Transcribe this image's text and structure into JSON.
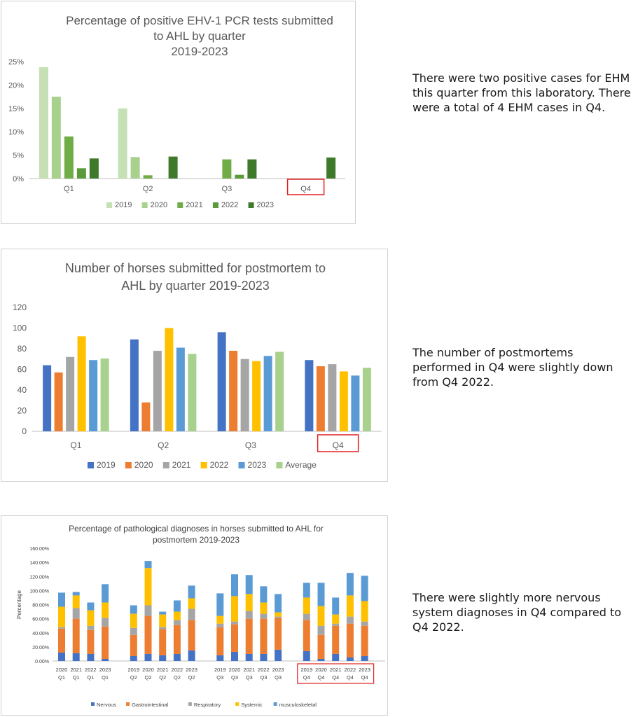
{
  "notes": {
    "ehm": "There were two positive cases for EHM this quarter from this laboratory. There were a total of 4 EHM cases in Q4.",
    "postmortem": "The number of postmortems performed in Q4 were slightly down from Q4 2022.",
    "diagnoses": "There were slightly more nervous system diagnoses in Q4 compared to Q4 2022."
  },
  "chart_data": [
    {
      "type": "bar",
      "title_lines": [
        "Percentage of positive EHV-1 PCR tests submitted",
        "to AHL by quarter",
        "2019-2023"
      ],
      "categories": [
        "Q1",
        "Q2",
        "Q3",
        "Q4"
      ],
      "highlight_category": "Q4",
      "ylim": [
        0,
        25
      ],
      "yticks": [
        "0%",
        "5%",
        "10%",
        "15%",
        "20%",
        "25%"
      ],
      "legend_position": "bottom",
      "grid": false,
      "series": [
        {
          "name": "2019",
          "color": "#c5e0b4",
          "values": [
            23.8,
            15.0,
            null,
            null
          ]
        },
        {
          "name": "2020",
          "color": "#a9d18e",
          "values": [
            17.5,
            4.6,
            null,
            null
          ]
        },
        {
          "name": "2021",
          "color": "#70ad47",
          "values": [
            9.0,
            0.7,
            4.1,
            null
          ]
        },
        {
          "name": "2022",
          "color": "#5b9a3a",
          "values": [
            2.2,
            null,
            0.8,
            null
          ]
        },
        {
          "name": "2023",
          "color": "#3f7a2a",
          "values": [
            4.3,
            4.7,
            4.1,
            4.5
          ]
        }
      ]
    },
    {
      "type": "bar",
      "title_lines": [
        "Number of horses submitted for postmortem to",
        "AHL by quarter 2019-2023"
      ],
      "categories": [
        "Q1",
        "Q2",
        "Q3",
        "Q4"
      ],
      "highlight_category": "Q4",
      "ylim": [
        0,
        120
      ],
      "yticks": [
        "0",
        "20",
        "40",
        "60",
        "80",
        "100",
        "120"
      ],
      "legend_position": "bottom",
      "grid": false,
      "series": [
        {
          "name": "2019",
          "color": "#4472c4",
          "values": [
            64,
            89,
            96,
            69
          ]
        },
        {
          "name": "2020",
          "color": "#ed7d31",
          "values": [
            57,
            28,
            78,
            63
          ]
        },
        {
          "name": "2021",
          "color": "#a5a5a5",
          "values": [
            72,
            78,
            70,
            65
          ]
        },
        {
          "name": "2022",
          "color": "#ffc000",
          "values": [
            92,
            100,
            68,
            58
          ]
        },
        {
          "name": "2023",
          "color": "#5b9bd5",
          "values": [
            69,
            81,
            73,
            54
          ]
        },
        {
          "name": "Average",
          "color": "#a9d18e",
          "values": [
            70.5,
            75,
            77,
            61.5
          ]
        }
      ]
    },
    {
      "type": "bar",
      "stacked": true,
      "title_lines": [
        "Percentage of pathological diagnoses in horses submitted to AHL for",
        "postmortem 2019-2023"
      ],
      "ylabel": "Percentage",
      "ylim": [
        0,
        160
      ],
      "yticks": [
        "0.00%",
        "20.00%",
        "40.00%",
        "60.00%",
        "80.00%",
        "100.00%",
        "120.00%",
        "140.00%",
        "160.00%"
      ],
      "legend_position": "bottom",
      "grid": false,
      "highlight_group": 3,
      "groups": [
        [
          [
            "2020",
            "Q1"
          ],
          [
            "2021",
            "Q1"
          ],
          [
            "2022",
            "Q1"
          ],
          [
            "2023",
            "Q1"
          ]
        ],
        [
          [
            "2019",
            "Q2"
          ],
          [
            "2020",
            "Q2"
          ],
          [
            "2021",
            "Q2"
          ],
          [
            "2022",
            "Q2"
          ],
          [
            "2023",
            "Q2"
          ]
        ],
        [
          [
            "2019",
            "Q3"
          ],
          [
            "2020",
            "Q3"
          ],
          [
            "2021",
            "Q3"
          ],
          [
            "2022",
            "Q3"
          ],
          [
            "2023",
            "Q3"
          ]
        ],
        [
          [
            "2019",
            "Q4"
          ],
          [
            "2020",
            "Q4"
          ],
          [
            "2021",
            "Q4"
          ],
          [
            "2022",
            "Q4"
          ],
          [
            "2023",
            "Q4"
          ]
        ]
      ],
      "series": [
        {
          "name": "Nervous",
          "color": "#4472c4",
          "values": [
            12,
            11,
            10,
            3,
            7,
            10,
            8,
            10,
            15,
            8,
            13,
            10,
            10,
            16,
            14,
            3,
            10,
            5,
            7
          ]
        },
        {
          "name": "Gastrointestinal",
          "color": "#ed7d31",
          "values": [
            34,
            49,
            34,
            46,
            30,
            54,
            37,
            41,
            43,
            40,
            39,
            50,
            50,
            45,
            44,
            34,
            40,
            48,
            43
          ]
        },
        {
          "name": "Respiratory",
          "color": "#a5a5a5",
          "values": [
            2,
            15,
            6,
            12,
            10,
            15,
            3,
            7,
            16,
            5,
            4,
            11,
            7,
            2,
            9,
            13,
            3,
            10,
            6
          ]
        },
        {
          "name": "Systemic",
          "color": "#ffc000",
          "values": [
            29,
            18,
            22,
            22,
            20,
            53,
            18,
            12,
            15,
            11,
            36,
            24,
            16,
            6,
            23,
            28,
            13,
            30,
            29
          ]
        },
        {
          "name": "musculoskeletal",
          "color": "#5b9bd5",
          "values": [
            20,
            5,
            11,
            26,
            12,
            10,
            4,
            16,
            18,
            32,
            31,
            27,
            23,
            26,
            21,
            33,
            24,
            32,
            36
          ]
        }
      ]
    }
  ]
}
